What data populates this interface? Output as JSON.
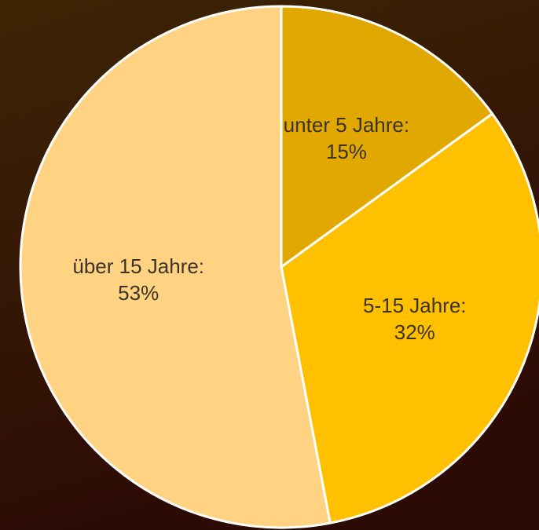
{
  "chart_data": {
    "type": "pie",
    "categories": [
      "unter 5 Jahre:",
      "5-15 Jahre:",
      "über 15 Jahre:"
    ],
    "values": [
      15,
      32,
      53
    ],
    "value_labels": [
      "15%",
      "32%",
      "53%"
    ],
    "colors": [
      "#e0a800",
      "#ffc000",
      "#ffd382"
    ]
  }
}
